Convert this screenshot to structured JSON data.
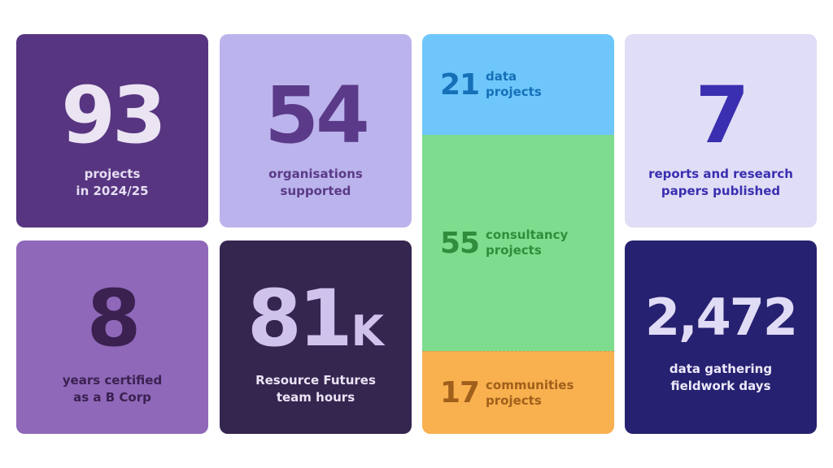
{
  "tiles": {
    "projects": {
      "value": "93",
      "caption": [
        "projects",
        "in 2024/25"
      ]
    },
    "organisations": {
      "value": "54",
      "caption": [
        "organisations",
        "supported"
      ]
    },
    "reports": {
      "value": "7",
      "caption": [
        "reports and research",
        "papers published"
      ]
    },
    "bcorp": {
      "value": "8",
      "caption": [
        "years certified",
        "as a B Corp"
      ]
    },
    "hours": {
      "value": "81",
      "suffix": "K",
      "caption": [
        "Resource Futures",
        "team hours"
      ]
    },
    "fieldwork": {
      "value": "2,472",
      "caption": [
        "data gathering",
        "fieldwork days"
      ]
    }
  },
  "breakdown": {
    "data": {
      "value": "21",
      "label": [
        "data",
        "projects"
      ]
    },
    "consultancy": {
      "value": "55",
      "label": [
        "consultancy",
        "projects"
      ]
    },
    "communities": {
      "value": "17",
      "label": [
        "communities",
        "projects"
      ]
    }
  },
  "colors": {
    "dark_purple": "#573580",
    "lavender": "#bbb4ec",
    "pale_lavender": "#e0ddf6",
    "mid_purple": "#8f68b9",
    "deep_purple": "#352650",
    "navy": "#262170",
    "sky_blue": "#6ec6fb",
    "green": "#7ddc8e",
    "orange": "#f9b04f"
  }
}
